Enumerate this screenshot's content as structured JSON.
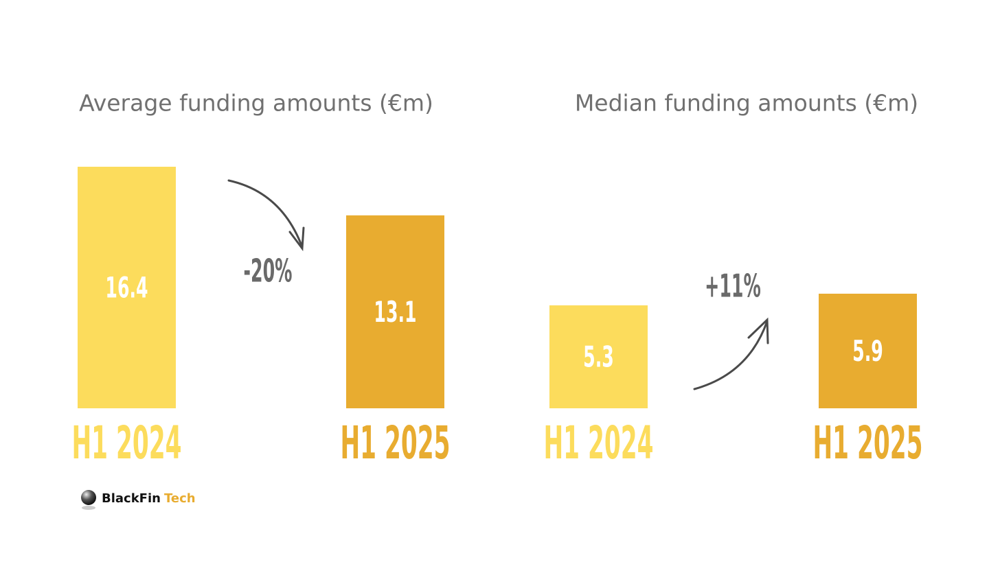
{
  "chart_data": [
    {
      "type": "bar",
      "title": "Average funding amounts (€m)",
      "categories": [
        "H1 2024",
        "H1 2025"
      ],
      "values": [
        16.4,
        13.1
      ],
      "colors": [
        "#fcdc5c",
        "#e8ac30"
      ],
      "annotation": "-20%"
    },
    {
      "type": "bar",
      "title": "Median funding amounts (€m)",
      "categories": [
        "H1 2024",
        "H1 2025"
      ],
      "values": [
        5.3,
        5.9
      ],
      "colors": [
        "#fcdc5c",
        "#e8ac30"
      ],
      "annotation": "+11%"
    }
  ],
  "logo": [
    "BlackFin",
    "Tech"
  ]
}
